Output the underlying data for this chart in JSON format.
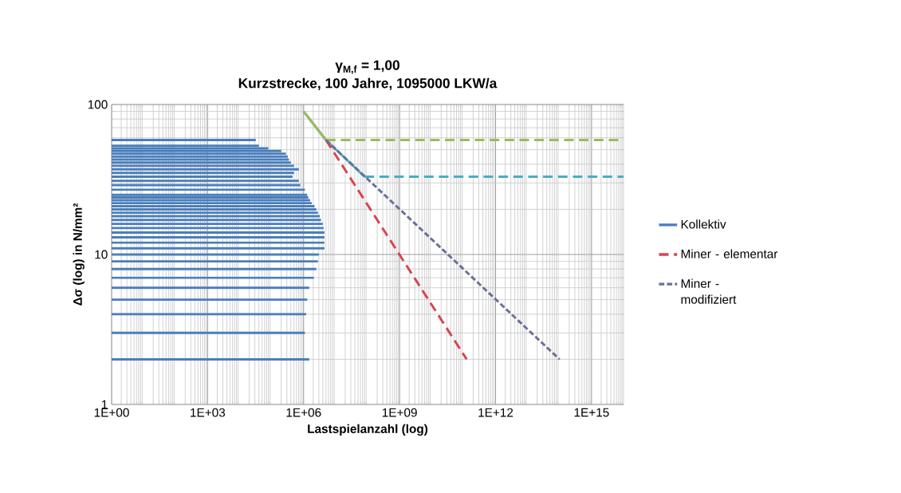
{
  "chart_data": {
    "type": "line",
    "title": "γ$_{M,f}$ = 1,00",
    "subtitle": "Kurzstrecke, 100 Jahre, 1095000 LKW/a",
    "xlabel": "Lastspielanzahl (log)",
    "ylabel": "Δσ (log) in N/mm²",
    "log": "xy",
    "grid": true,
    "legend": "right",
    "marker": "none",
    "xlim": [
      1,
      1e+16
    ],
    "ylim": [
      1,
      100
    ],
    "xticks": [
      {
        "value": 1,
        "label": "1E+00"
      },
      {
        "value": 1000.0,
        "label": "1E+03"
      },
      {
        "value": 1000000.0,
        "label": "1E+06"
      },
      {
        "value": 1000000000.0,
        "label": "1E+09"
      },
      {
        "value": 1000000000000.0,
        "label": "1E+12"
      },
      {
        "value": 1000000000000000.0,
        "label": "1E+15"
      }
    ],
    "yticks": [
      1,
      10,
      100
    ],
    "series": [
      {
        "name": "Kollektiv",
        "color": "#4a7ebb",
        "line_style": "solid",
        "x": [
          1,
          32000.0
        ],
        "values": [
          58,
          58
        ]
      },
      {
        "color": "#4a7ebb",
        "line_style": "solid",
        "x": [
          1,
          40000.0
        ],
        "values": [
          53,
          53
        ]
      },
      {
        "color": "#4a7ebb",
        "line_style": "solid",
        "x": [
          1,
          79000.0
        ],
        "values": [
          51,
          51
        ]
      },
      {
        "color": "#4a7ebb",
        "line_style": "solid",
        "x": [
          1,
          200000.0
        ],
        "values": [
          49,
          49
        ]
      },
      {
        "color": "#4a7ebb",
        "line_style": "solid",
        "x": [
          1,
          280000.0
        ],
        "values": [
          47,
          47
        ]
      },
      {
        "color": "#4a7ebb",
        "line_style": "solid",
        "x": [
          1,
          320000.0
        ],
        "values": [
          45,
          45
        ]
      },
      {
        "color": "#4a7ebb",
        "line_style": "solid",
        "x": [
          1,
          350000.0
        ],
        "values": [
          43,
          43
        ]
      },
      {
        "color": "#4a7ebb",
        "line_style": "solid",
        "x": [
          1,
          400000.0
        ],
        "values": [
          41,
          41
        ]
      },
      {
        "color": "#4a7ebb",
        "line_style": "solid",
        "x": [
          1,
          500000.0
        ],
        "values": [
          39,
          39
        ]
      },
      {
        "color": "#4a7ebb",
        "line_style": "solid",
        "x": [
          1,
          710000.0
        ],
        "values": [
          37,
          37
        ]
      },
      {
        "color": "#4a7ebb",
        "line_style": "solid",
        "x": [
          1,
          500000.0
        ],
        "values": [
          35,
          35
        ]
      },
      {
        "color": "#4a7ebb",
        "line_style": "solid",
        "x": [
          1,
          450000.0
        ],
        "values": [
          33,
          33
        ]
      },
      {
        "color": "#4a7ebb",
        "line_style": "solid",
        "x": [
          1,
          710000.0
        ],
        "values": [
          31,
          31
        ]
      },
      {
        "color": "#4a7ebb",
        "line_style": "solid",
        "x": [
          1,
          790000.0
        ],
        "values": [
          29,
          29
        ]
      },
      {
        "color": "#4a7ebb",
        "line_style": "solid",
        "x": [
          1,
          1100000.0
        ],
        "values": [
          27,
          27
        ]
      },
      {
        "color": "#4a7ebb",
        "line_style": "solid",
        "x": [
          1,
          1300000.0
        ],
        "values": [
          25,
          25
        ]
      },
      {
        "color": "#4a7ebb",
        "line_style": "solid",
        "x": [
          1,
          1400000.0
        ],
        "values": [
          24,
          24
        ]
      },
      {
        "color": "#4a7ebb",
        "line_style": "solid",
        "x": [
          1,
          1600000.0
        ],
        "values": [
          23,
          23
        ]
      },
      {
        "color": "#4a7ebb",
        "line_style": "solid",
        "x": [
          1,
          1800000.0
        ],
        "values": [
          22,
          22
        ]
      },
      {
        "color": "#4a7ebb",
        "line_style": "solid",
        "x": [
          1,
          2200000.0
        ],
        "values": [
          21,
          21
        ]
      },
      {
        "color": "#4a7ebb",
        "line_style": "solid",
        "x": [
          1,
          2500000.0
        ],
        "values": [
          20,
          20
        ]
      },
      {
        "color": "#4a7ebb",
        "line_style": "solid",
        "x": [
          1,
          2800000.0
        ],
        "values": [
          19,
          19
        ]
      },
      {
        "color": "#4a7ebb",
        "line_style": "solid",
        "x": [
          1,
          3200000.0
        ],
        "values": [
          18,
          18
        ]
      },
      {
        "color": "#4a7ebb",
        "line_style": "solid",
        "x": [
          1,
          3500000.0
        ],
        "values": [
          17,
          17
        ]
      },
      {
        "color": "#4a7ebb",
        "line_style": "solid",
        "x": [
          1,
          4000000.0
        ],
        "values": [
          16,
          16
        ]
      },
      {
        "color": "#4a7ebb",
        "line_style": "solid",
        "x": [
          1,
          4200000.0
        ],
        "values": [
          15,
          15
        ]
      },
      {
        "color": "#4a7ebb",
        "line_style": "solid",
        "x": [
          1,
          4500000.0
        ],
        "values": [
          14,
          14
        ]
      },
      {
        "color": "#4a7ebb",
        "line_style": "solid",
        "x": [
          1,
          4500000.0
        ],
        "values": [
          13,
          13
        ]
      },
      {
        "color": "#4a7ebb",
        "line_style": "solid",
        "x": [
          1,
          4500000.0
        ],
        "values": [
          12,
          12
        ]
      },
      {
        "color": "#4a7ebb",
        "line_style": "solid",
        "x": [
          1,
          4500000.0
        ],
        "values": [
          11,
          11
        ]
      },
      {
        "color": "#4a7ebb",
        "line_style": "solid",
        "x": [
          1,
          3000000.0
        ],
        "values": [
          10,
          10
        ]
      },
      {
        "color": "#4a7ebb",
        "line_style": "solid",
        "x": [
          1,
          2800000.0
        ],
        "values": [
          9,
          9
        ]
      },
      {
        "color": "#4a7ebb",
        "line_style": "solid",
        "x": [
          1,
          2500000.0
        ],
        "values": [
          8,
          8
        ]
      },
      {
        "color": "#4a7ebb",
        "line_style": "solid",
        "x": [
          1,
          2100000.0
        ],
        "values": [
          7,
          7
        ]
      },
      {
        "color": "#4a7ebb",
        "line_style": "solid",
        "x": [
          1,
          1500000.0
        ],
        "values": [
          6,
          6
        ]
      },
      {
        "color": "#4a7ebb",
        "line_style": "solid",
        "x": [
          1,
          1300000.0
        ],
        "values": [
          5,
          5
        ]
      },
      {
        "color": "#4a7ebb",
        "line_style": "solid",
        "x": [
          1,
          1200000.0
        ],
        "values": [
          4,
          4
        ]
      },
      {
        "color": "#4a7ebb",
        "line_style": "solid",
        "x": [
          1,
          1100000.0
        ],
        "values": [
          3,
          3
        ]
      },
      {
        "color": "#4a7ebb",
        "line_style": "solid",
        "x": [
          1,
          1500000.0
        ],
        "values": [
          2,
          2
        ]
      },
      {
        "color": "#4bacc6",
        "line_style": "solid",
        "x": [
          1000000.0,
          5000000.0,
          80000000.0
        ],
        "values": [
          90,
          58,
          33
        ]
      },
      {
        "color": "#4bacc6",
        "line_style": "dashed",
        "x": [
          80000000.0,
          1e+16
        ],
        "values": [
          33,
          33
        ]
      },
      {
        "color": "#9bbb59",
        "line_style": "solid",
        "x": [
          1000000.0,
          5000000.0
        ],
        "values": [
          90,
          58
        ]
      },
      {
        "color": "#9bbb59",
        "line_style": "dashed",
        "x": [
          5000000.0,
          1e+16
        ],
        "values": [
          58,
          58
        ]
      },
      {
        "name": "Miner - elementar",
        "color": "#d9434e",
        "line_style": "dashed",
        "x": [
          5000000.0,
          125000000000.0
        ],
        "values": [
          58,
          2
        ]
      },
      {
        "name": "Miner - modifiziert",
        "color": "#6a6f95",
        "line_style": "dashed",
        "x": [
          5000000.0,
          100000000000000.0
        ],
        "values": [
          58,
          2
        ]
      }
    ]
  }
}
